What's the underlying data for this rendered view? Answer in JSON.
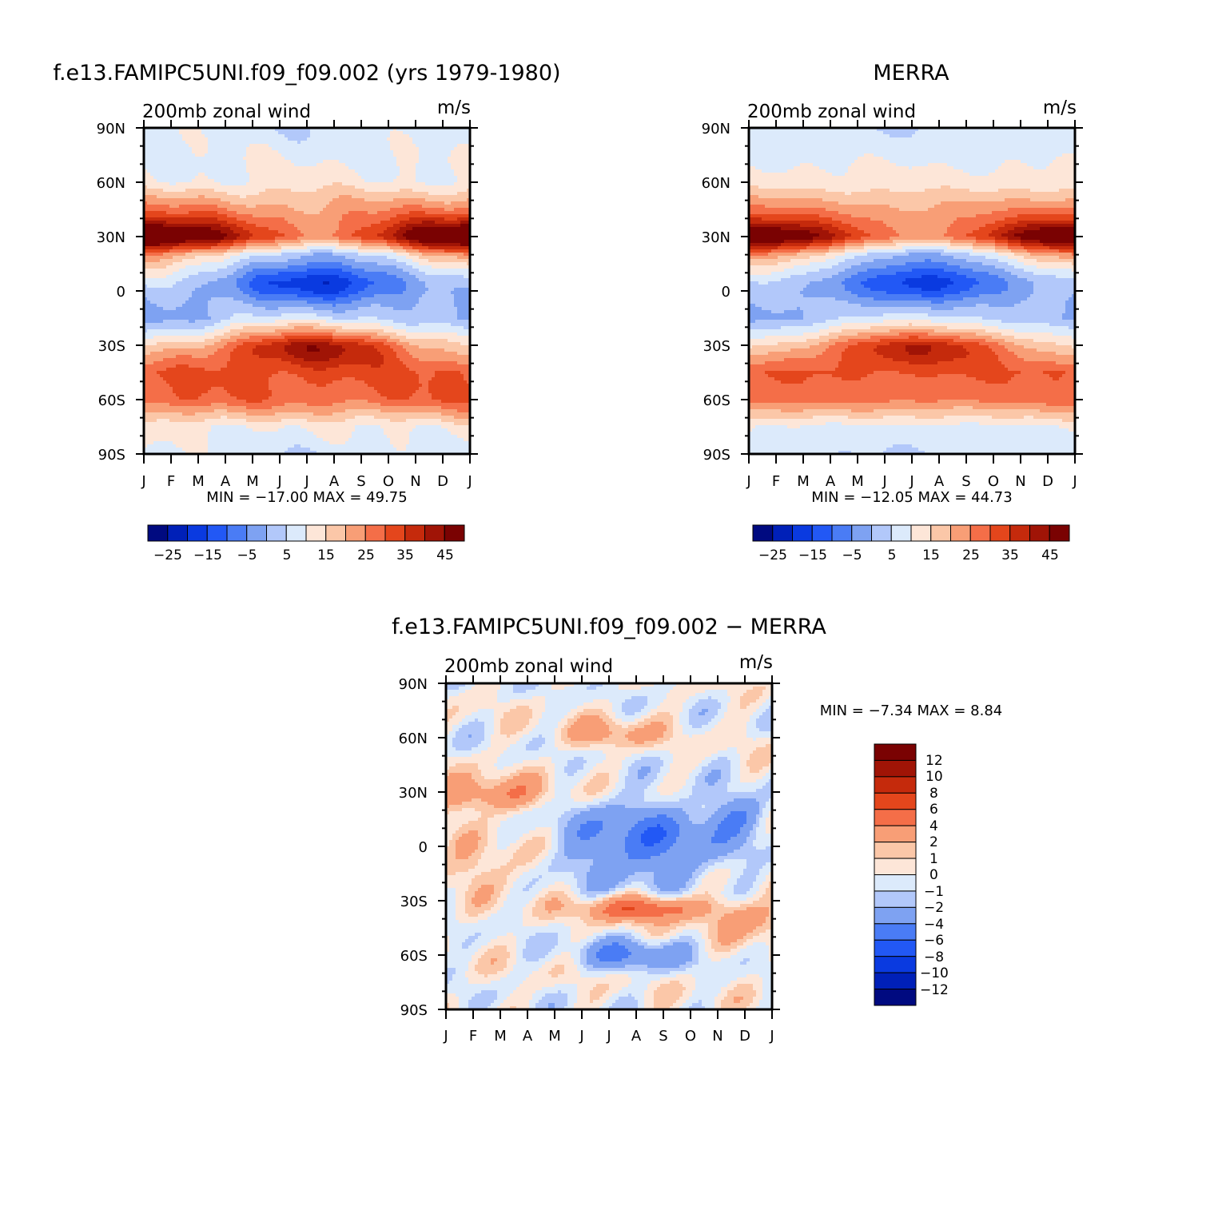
{
  "chart_data": [
    {
      "type": "heatmap",
      "title": "f.e13.FAMIPC5UNI.f09_f09.002 (yrs 1979-1980)",
      "subtitle_left": "200mb  zonal  wind",
      "subtitle_right": "m/s",
      "x_ticks": [
        "J",
        "F",
        "M",
        "A",
        "M",
        "J",
        "J",
        "A",
        "S",
        "O",
        "N",
        "D",
        "J"
      ],
      "y_ticks": [
        "90N",
        "60N",
        "30N",
        "0",
        "30S",
        "60S",
        "90S"
      ],
      "stats": "MIN = −17.00  MAX =   49.75",
      "min": -17.0,
      "max": 49.75,
      "colorbar_labels": [
        "−25",
        "−15",
        "−5",
        "5",
        "15",
        "25",
        "35",
        "45"
      ],
      "levels": [
        -30,
        -25,
        -20,
        -15,
        -10,
        -5,
        0,
        5,
        10,
        15,
        20,
        25,
        30,
        35,
        40,
        45
      ],
      "values_by_month": {
        "lat": [
          90,
          60,
          40,
          30,
          20,
          5,
          0,
          -15,
          -30,
          -45,
          -60,
          -75,
          -90
        ],
        "J": [
          8,
          10,
          32,
          48,
          20,
          5,
          2,
          -2,
          15,
          30,
          30,
          12,
          8
        ],
        "A": [
          6,
          12,
          25,
          30,
          2,
          -12,
          -10,
          8,
          35,
          32,
          28,
          10,
          6
        ],
        "J_end": [
          7,
          11,
          32,
          45,
          20,
          3,
          0,
          -2,
          16,
          32,
          30,
          12,
          8
        ]
      }
    },
    {
      "type": "heatmap",
      "title": "MERRA",
      "subtitle_left": "200mb  zonal  wind",
      "subtitle_right": "m/s",
      "x_ticks": [
        "J",
        "F",
        "M",
        "A",
        "M",
        "J",
        "J",
        "A",
        "S",
        "O",
        "N",
        "D",
        "J"
      ],
      "y_ticks": [
        "90N",
        "60N",
        "30N",
        "0",
        "30S",
        "60S",
        "90S"
      ],
      "stats": "MIN = −12.05  MAX =   44.73",
      "min": -12.05,
      "max": 44.73,
      "colorbar_labels": [
        "−25",
        "−15",
        "−5",
        "5",
        "15",
        "25",
        "35",
        "45"
      ],
      "levels": [
        -30,
        -25,
        -20,
        -15,
        -10,
        -5,
        0,
        5,
        10,
        15,
        20,
        25,
        30,
        35,
        40,
        45
      ],
      "values_by_month": {
        "lat": [
          90,
          60,
          40,
          30,
          20,
          5,
          0,
          -15,
          -30,
          -45,
          -60,
          -75,
          -90
        ],
        "J": [
          6,
          12,
          30,
          44,
          20,
          4,
          2,
          -1,
          14,
          30,
          28,
          10,
          6
        ],
        "A": [
          5,
          12,
          24,
          28,
          1,
          -10,
          -8,
          8,
          32,
          30,
          26,
          8,
          5
        ],
        "J_end": [
          6,
          12,
          30,
          42,
          20,
          3,
          1,
          -1,
          15,
          30,
          28,
          10,
          6
        ]
      }
    },
    {
      "type": "heatmap",
      "title": "f.e13.FAMIPC5UNI.f09_f09.002 − MERRA",
      "subtitle_left": "200mb  zonal  wind",
      "subtitle_right": "m/s",
      "x_ticks": [
        "J",
        "F",
        "M",
        "A",
        "M",
        "J",
        "J",
        "A",
        "S",
        "O",
        "N",
        "D",
        "J"
      ],
      "y_ticks": [
        "90N",
        "60N",
        "30N",
        "0",
        "30S",
        "60S",
        "90S"
      ],
      "stats": "MIN =   −7.34  MAX =    8.84",
      "min": -7.34,
      "max": 8.84,
      "colorbar_labels": [
        "12",
        "10",
        "8",
        "6",
        "4",
        "2",
        "1",
        "0",
        "−1",
        "−2",
        "−4",
        "−6",
        "−8",
        "−10",
        "−12"
      ],
      "levels": [
        -12,
        -10,
        -8,
        -6,
        -4,
        -2,
        -1,
        0,
        1,
        2,
        4,
        6,
        8,
        10,
        12
      ]
    }
  ],
  "palette": {
    "blue_red_16": [
      "#000a80",
      "#0020b8",
      "#0a3ae0",
      "#2258f5",
      "#4a7cf5",
      "#7ea2f2",
      "#b2c8fa",
      "#dceafb",
      "#fde6d8",
      "#fbc7a8",
      "#f89e76",
      "#f46e48",
      "#e4461c",
      "#c52a0c",
      "#a01406",
      "#7a0202"
    ],
    "diff_16": [
      "#000a80",
      "#0020b8",
      "#0a3ae0",
      "#2258f5",
      "#4a7cf5",
      "#7ea2f2",
      "#b2c8fa",
      "#dceafb",
      "#fde6d8",
      "#fbc7a8",
      "#f89e76",
      "#f46e48",
      "#e4461c",
      "#c52a0c",
      "#a01406",
      "#7a0202"
    ]
  }
}
